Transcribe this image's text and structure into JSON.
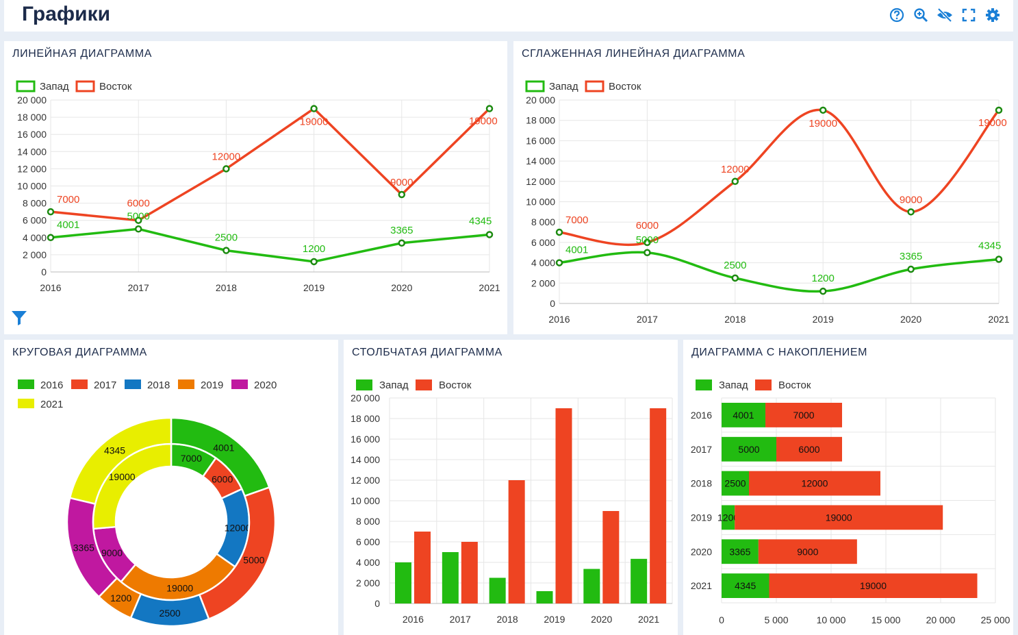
{
  "page": {
    "title": "Графики"
  },
  "toolbar": {
    "icons": [
      "help-icon",
      "zoom-icon",
      "hide-icon",
      "fullscreen-icon",
      "settings-icon"
    ]
  },
  "colors": {
    "west": "#22bb11",
    "east": "#ee4422",
    "y2018": "#1377c2",
    "y2019": "#ee7a00",
    "y2020": "#c018a0",
    "y2021": "#e8ee00",
    "accent": "#1a7fd6"
  },
  "panels": {
    "line": {
      "title": "ЛИНЕЙНАЯ ДИАГРАММА"
    },
    "smooth": {
      "title": "СГЛАЖЕННАЯ ЛИНЕЙНАЯ ДИАГРАММА"
    },
    "pie": {
      "title": "КРУГОВАЯ ДИАГРАММА"
    },
    "bar": {
      "title": "СТОЛБЧАТАЯ ДИАГРАММА"
    },
    "stacked": {
      "title": "ДИАГРАММА С НАКОПЛЕНИЕМ"
    }
  },
  "chart_data": [
    {
      "type": "line",
      "categories": [
        "2016",
        "2017",
        "2018",
        "2019",
        "2020",
        "2021"
      ],
      "series": [
        {
          "name": "Запад",
          "values": [
            4001,
            5000,
            2500,
            1200,
            3365,
            4345
          ]
        },
        {
          "name": "Восток",
          "values": [
            7000,
            6000,
            12000,
            19000,
            9000,
            19000
          ]
        }
      ],
      "ylim": [
        0,
        20000
      ],
      "yticks": [
        "0",
        "2 000",
        "4 000",
        "6 000",
        "8 000",
        "10 000",
        "12 000",
        "14 000",
        "16 000",
        "18 000",
        "20 000"
      ],
      "legend": "top-left",
      "grid": true
    },
    {
      "type": "line",
      "smooth": true,
      "categories": [
        "2016",
        "2017",
        "2018",
        "2019",
        "2020",
        "2021"
      ],
      "series": [
        {
          "name": "Запад",
          "values": [
            4001,
            5000,
            2500,
            1200,
            3365,
            4345
          ]
        },
        {
          "name": "Восток",
          "values": [
            7000,
            6000,
            12000,
            19000,
            9000,
            19000
          ]
        }
      ],
      "ylim": [
        0,
        20000
      ],
      "yticks": [
        "0",
        "2 000",
        "4 000",
        "6 000",
        "8 000",
        "10 000",
        "12 000",
        "14 000",
        "16 000",
        "18 000",
        "20 000"
      ],
      "legend": "top-left",
      "grid": true
    },
    {
      "type": "pie",
      "donut": true,
      "categories": [
        "2016",
        "2017",
        "2018",
        "2019",
        "2020",
        "2021"
      ],
      "series": [
        {
          "name": "Восток",
          "values": [
            7000,
            6000,
            12000,
            19000,
            9000,
            19000
          ]
        },
        {
          "name": "Запад",
          "values": [
            4001,
            5000,
            2500,
            1200,
            3365,
            4345
          ]
        }
      ],
      "legend": "top-left"
    },
    {
      "type": "bar",
      "categories": [
        "2016",
        "2017",
        "2018",
        "2019",
        "2020",
        "2021"
      ],
      "series": [
        {
          "name": "Запад",
          "values": [
            4001,
            5000,
            2500,
            1200,
            3365,
            4345
          ]
        },
        {
          "name": "Восток",
          "values": [
            7000,
            6000,
            12000,
            19000,
            9000,
            19000
          ]
        }
      ],
      "ylim": [
        0,
        20000
      ],
      "yticks": [
        "0",
        "2 000",
        "4 000",
        "6 000",
        "8 000",
        "10 000",
        "12 000",
        "14 000",
        "16 000",
        "18 000",
        "20 000"
      ],
      "legend": "top-left",
      "grid": true
    },
    {
      "type": "bar",
      "stacked": true,
      "orientation": "horizontal",
      "categories": [
        "2016",
        "2017",
        "2018",
        "2019",
        "2020",
        "2021"
      ],
      "series": [
        {
          "name": "Запад",
          "values": [
            4001,
            5000,
            2500,
            1200,
            3365,
            4345
          ]
        },
        {
          "name": "Восток",
          "values": [
            7000,
            6000,
            12000,
            19000,
            9000,
            19000
          ]
        }
      ],
      "xlim": [
        0,
        25000
      ],
      "xticks": [
        "0",
        "5 000",
        "10 000",
        "15 000",
        "20 000",
        "25 000"
      ],
      "legend": "top-left",
      "grid": true
    }
  ]
}
